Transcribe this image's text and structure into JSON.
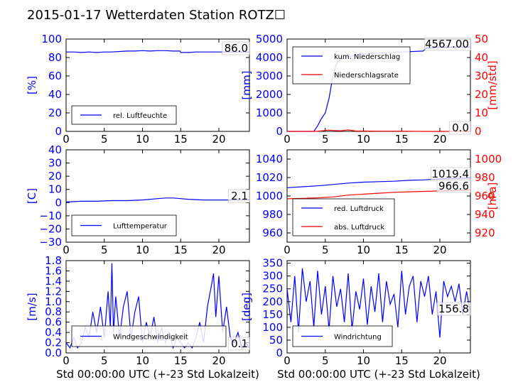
{
  "title": "2015-01-17 Wetterdaten Station ROTZ☐",
  "colors": {
    "blue": "#0000ff",
    "red": "#ff0000",
    "black": "#000000"
  },
  "chart_data": [
    {
      "type": "line",
      "ylabel": "[%]",
      "ylim": [
        0,
        100
      ],
      "yticks": [
        "0",
        "20",
        "40",
        "60",
        "80",
        "100"
      ],
      "xlim": [
        0,
        24
      ],
      "xticks": [
        "0",
        "5",
        "10",
        "15",
        "20"
      ],
      "current_value": "86.0",
      "legend": "rel. Luftfeuchte",
      "series": [
        {
          "name": "rel. Luftfeuchte",
          "color": "#0000ff",
          "x": [
            0,
            1,
            2,
            3,
            4,
            5,
            6,
            7,
            8,
            9,
            10,
            11,
            12,
            13,
            14,
            14.9,
            15,
            16,
            17,
            18,
            19,
            20,
            21,
            22,
            23,
            24
          ],
          "y": [
            86,
            86,
            85.5,
            86,
            85.5,
            86,
            86,
            86.5,
            87,
            87,
            87.5,
            87,
            87.5,
            87.5,
            87,
            87,
            85.5,
            85.5,
            86,
            86,
            86,
            86,
            86,
            86,
            86,
            86
          ]
        }
      ]
    },
    {
      "type": "line",
      "ylabel": "[mm]",
      "ylim": [
        0,
        5000
      ],
      "yticks": [
        "0",
        "1000",
        "2000",
        "3000",
        "4000",
        "5000"
      ],
      "y2label": "[mm/std]",
      "y2lim": [
        0,
        50
      ],
      "y2ticks": [
        "0",
        "10",
        "20",
        "30",
        "40",
        "50"
      ],
      "xlim": [
        0,
        24
      ],
      "xticks": [
        "0",
        "5",
        "10",
        "15",
        "20"
      ],
      "current_value": "4567.00",
      "current_value2": "0.0",
      "legend": [
        "kum. Niederschlag",
        "Niederschlagsrate"
      ],
      "series": [
        {
          "name": "kum. Niederschlag",
          "color": "#0000ff",
          "x": [
            0,
            3.5,
            4,
            4.5,
            5,
            5.5,
            6,
            6.5,
            7,
            8,
            10,
            15,
            17.8,
            18.2,
            20,
            22,
            24
          ],
          "y": [
            0,
            0,
            300,
            700,
            1000,
            1800,
            3000,
            3700,
            3900,
            4050,
            4200,
            4300,
            4350,
            4500,
            4550,
            4567,
            4567
          ]
        },
        {
          "name": "Niederschlagsrate",
          "color": "#ff0000",
          "x": [
            0,
            3.8,
            4.5,
            5,
            5.5,
            6,
            7,
            8,
            9,
            10,
            12,
            15,
            18,
            24
          ],
          "y": [
            0,
            0,
            0.3,
            0.5,
            0.7,
            0.5,
            0.3,
            0.8,
            0.2,
            0.2,
            0.1,
            0.1,
            0,
            0
          ]
        }
      ]
    },
    {
      "type": "line",
      "ylabel": "[C]",
      "ylim": [
        -30,
        40
      ],
      "yticks": [
        "−30",
        "−20",
        "−10",
        "0",
        "10",
        "20",
        "30",
        "40"
      ],
      "xlim": [
        0,
        24
      ],
      "xticks": [
        "0",
        "5",
        "10",
        "15",
        "20"
      ],
      "current_value": "2.1",
      "legend": "Lufttemperatur",
      "series": [
        {
          "name": "Lufttemperatur",
          "color": "#0000ff",
          "x": [
            0,
            2,
            4,
            6,
            8,
            10,
            12,
            13,
            14,
            15,
            16,
            18,
            20,
            22,
            24
          ],
          "y": [
            0.5,
            1,
            1,
            1.5,
            1.5,
            2,
            3,
            3.5,
            3.5,
            3,
            2.5,
            2,
            2,
            2,
            2.1
          ]
        }
      ]
    },
    {
      "type": "line",
      "ylabel": "",
      "ylim": [
        950,
        1050
      ],
      "yticks": [
        "960",
        "980",
        "1000",
        "1020",
        "1040"
      ],
      "y2label": "[hPa]",
      "y2lim": [
        910,
        1010
      ],
      "y2ticks": [
        "920",
        "940",
        "960",
        "980",
        "1000"
      ],
      "xlim": [
        0,
        24
      ],
      "xticks": [
        "0",
        "5",
        "10",
        "15",
        "20"
      ],
      "current_value": "1019.4",
      "current_value2": "966.6",
      "legend": [
        "red. Luftdruck",
        "abs. Luftdruck"
      ],
      "series": [
        {
          "name": "red. Luftdruck",
          "color": "#0000ff",
          "x": [
            0,
            2,
            4,
            6,
            8,
            10,
            12,
            14,
            16,
            18,
            20,
            22,
            24
          ],
          "y": [
            1009,
            1010,
            1011,
            1012.5,
            1014,
            1015,
            1015.5,
            1016,
            1017,
            1017.5,
            1018.5,
            1019,
            1019.4
          ]
        },
        {
          "name": "abs. Luftdruck",
          "color": "#ff0000",
          "x": [
            0,
            2,
            4,
            6,
            8,
            10,
            12,
            14,
            16,
            18,
            20,
            22,
            24
          ],
          "y": [
            957,
            957.5,
            958,
            959,
            961,
            962,
            963,
            964,
            964.5,
            965,
            965.5,
            966,
            966.6
          ]
        }
      ]
    },
    {
      "type": "line",
      "ylabel": "[m/s]",
      "ylim": [
        0,
        1.8
      ],
      "yticks": [
        "0.0",
        "0.2",
        "0.4",
        "0.6",
        "0.8",
        "1.0",
        "1.2",
        "1.4",
        "1.6",
        "1.8"
      ],
      "xlim": [
        0,
        24
      ],
      "xticks": [
        "0",
        "5",
        "10",
        "15",
        "20"
      ],
      "xlabel": "Std 00:00:00 UTC (+-23 Std Lokalzeit)",
      "current_value": "0.1",
      "legend": "Windgeschwindigkeit",
      "series": [
        {
          "name": "Windgeschwindigkeit",
          "color": "#0000ff",
          "x": [
            0,
            0.5,
            1,
            1.5,
            2,
            2.5,
            3,
            3.5,
            4,
            4.5,
            5,
            5.5,
            5.8,
            6,
            6.2,
            6.5,
            7,
            7.5,
            8,
            8.5,
            9,
            9.5,
            10,
            10.5,
            11,
            11.5,
            12,
            12.5,
            13,
            13.5,
            14,
            14.5,
            15,
            15.5,
            16,
            16.5,
            17,
            17.5,
            18,
            18.5,
            19,
            19.3,
            19.6,
            20,
            20.5,
            21,
            21.5,
            22,
            22.5,
            23,
            23.5,
            24
          ],
          "y": [
            0.2,
            0.1,
            0.3,
            0.1,
            0.2,
            0.5,
            0.3,
            0.8,
            0.4,
            0.9,
            0.3,
            1.2,
            0.5,
            1.75,
            0.4,
            1.1,
            0.3,
            0.9,
            1.2,
            0.3,
            0.8,
            1.1,
            0.2,
            0.6,
            0.3,
            0.7,
            0.2,
            0.5,
            0.2,
            0.4,
            0.1,
            0.3,
            0.2,
            0.1,
            0.2,
            0.1,
            0.3,
            0.6,
            0.2,
            0.9,
            1.3,
            1.55,
            0.7,
            1.5,
            0.4,
            0.9,
            0.3,
            0.2,
            0.4,
            0.1,
            0.2,
            0.1
          ]
        }
      ]
    },
    {
      "type": "line",
      "ylabel": "[deg]",
      "ylim": [
        0,
        360
      ],
      "yticks": [
        "0",
        "50",
        "100",
        "150",
        "200",
        "250",
        "300",
        "350"
      ],
      "xlim": [
        0,
        24
      ],
      "xticks": [
        "0",
        "5",
        "10",
        "15",
        "20"
      ],
      "xlabel": "Std 00:00:00 UTC (+-23 Std Lokalzeit)",
      "current_value": "156.8",
      "legend": "Windrichtung",
      "series": [
        {
          "name": "Windrichtung",
          "color": "#0000ff",
          "x": [
            0,
            0.5,
            1,
            1.5,
            2,
            2.5,
            3,
            3.5,
            4,
            4.5,
            5,
            5.5,
            6,
            6.5,
            7,
            7.5,
            8,
            8.5,
            9,
            9.5,
            10,
            10.5,
            11,
            11.5,
            12,
            12.5,
            13,
            13.5,
            14,
            14.5,
            15,
            15.5,
            16,
            16.5,
            17,
            17.5,
            18,
            18.5,
            19,
            19.5,
            20,
            20.5,
            21,
            21.5,
            22,
            22.5,
            23,
            23.5,
            24
          ],
          "y": [
            250,
            120,
            300,
            80,
            330,
            200,
            280,
            100,
            320,
            150,
            260,
            90,
            300,
            180,
            250,
            120,
            310,
            90,
            240,
            170,
            290,
            110,
            260,
            160,
            310,
            120,
            280,
            190,
            230,
            100,
            320,
            150,
            260,
            300,
            120,
            280,
            220,
            300,
            150,
            240,
            60,
            280,
            220,
            260,
            200,
            270,
            150,
            240,
            156.8
          ]
        }
      ]
    }
  ]
}
